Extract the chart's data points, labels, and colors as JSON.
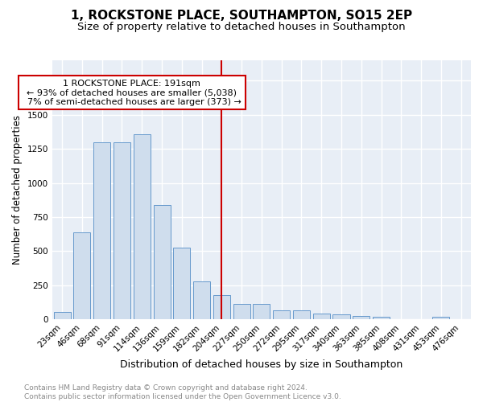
{
  "title1": "1, ROCKSTONE PLACE, SOUTHAMPTON, SO15 2EP",
  "title2": "Size of property relative to detached houses in Southampton",
  "xlabel": "Distribution of detached houses by size in Southampton",
  "ylabel": "Number of detached properties",
  "footer": "Contains HM Land Registry data © Crown copyright and database right 2024.\nContains public sector information licensed under the Open Government Licence v3.0.",
  "categories": [
    "23sqm",
    "46sqm",
    "68sqm",
    "91sqm",
    "114sqm",
    "136sqm",
    "159sqm",
    "182sqm",
    "204sqm",
    "227sqm",
    "250sqm",
    "272sqm",
    "295sqm",
    "317sqm",
    "340sqm",
    "363sqm",
    "385sqm",
    "408sqm",
    "431sqm",
    "453sqm",
    "476sqm"
  ],
  "values": [
    55,
    640,
    1300,
    1300,
    1360,
    840,
    525,
    280,
    175,
    110,
    110,
    65,
    65,
    40,
    35,
    25,
    20,
    0,
    0,
    15,
    0
  ],
  "bar_color": "#cfdded",
  "bar_edge_color": "#6699cc",
  "vline_color": "#cc0000",
  "annotation_text": "  1 ROCKSTONE PLACE: 191sqm  \n← 93% of detached houses are smaller (5,038)\n  7% of semi-detached houses are larger (373) →",
  "annotation_box_color": "#ffffff",
  "annotation_box_edge_color": "#cc0000",
  "background_color": "#e8eef6",
  "grid_color": "#ffffff",
  "ylim": [
    0,
    1900
  ],
  "title1_fontsize": 11,
  "title2_fontsize": 9.5,
  "xlabel_fontsize": 9,
  "ylabel_fontsize": 8.5,
  "tick_fontsize": 7.5,
  "annotation_fontsize": 8,
  "footer_fontsize": 6.5
}
